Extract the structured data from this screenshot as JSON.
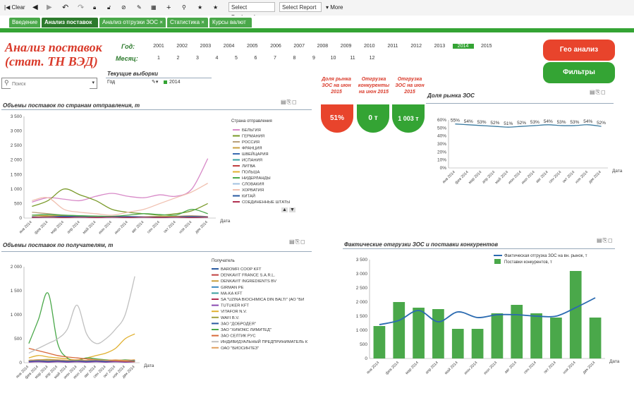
{
  "toolbar": {
    "clear": "Clear",
    "bookmark": "Select Bookmark",
    "report": "Select Report",
    "more": "More"
  },
  "tabs": [
    "Введение",
    "Анализ поставок",
    "Анализ отгрузки ЗОС",
    "Статистика",
    "Курсы валют"
  ],
  "active_tab": 1,
  "header": {
    "title": "Анализ поставок (стат. ТН ВЭД)",
    "year_label": "Год:",
    "month_label": "Месяц:",
    "years": [
      "2001",
      "2002",
      "2003",
      "2004",
      "2005",
      "2006",
      "2007",
      "2008",
      "2009",
      "2010",
      "2011",
      "2012",
      "2013",
      "2014",
      "2015"
    ],
    "selected_year": "2014",
    "months": [
      "1",
      "2",
      "3",
      "4",
      "5",
      "6",
      "7",
      "8",
      "9",
      "10",
      "11",
      "12"
    ]
  },
  "buttons": {
    "geo": "Гео анализ",
    "filters": "Фильтры",
    "colors": {
      "geo": "#e8442c",
      "filters": "#34a434"
    }
  },
  "search": {
    "placeholder": "Поиск"
  },
  "current_selections": {
    "title": "Текущие выборки",
    "field": "Год",
    "value": "2014"
  },
  "kpi": {
    "labels": [
      "Доля рынка ЗОС на июн 2015",
      "Отгрузка конкуренты на июн 2015",
      "Отгрузка ЗОС на июн 2015"
    ],
    "values": [
      "51%",
      "0 т",
      "1 003 т"
    ],
    "colors": [
      "#e8442c",
      "#34a434",
      "#34a434"
    ]
  },
  "chart_country": {
    "title": "Объемы поставок по странам отправления, т",
    "legend_title": "Страна отправления",
    "xlabel": "Дата",
    "yticks": [
      "3 500",
      "3 000",
      "2 500",
      "2 000",
      "1 500",
      "1 000",
      "500",
      "0"
    ],
    "xticks": [
      "янв 2014",
      "фев 2014",
      "мар 2014",
      "апр 2014",
      "май 2014",
      "июн 2014",
      "июл 2014",
      "авг 2014",
      "сен 2014",
      "окт 2014",
      "ноя 2014",
      "дек 2014"
    ]
  },
  "chart_recipient": {
    "title": "Объемы поставок по получателям, т",
    "legend_title": "Получатель",
    "xlabel": "Дата",
    "yticks": [
      "2 000",
      "1 500",
      "1 000",
      "500",
      "0"
    ],
    "xticks": [
      "янв 2014",
      "фев 2014",
      "мар 2014",
      "апр 2014",
      "май 2014",
      "июн 2014",
      "июл 2014",
      "авг 2014",
      "сен 2014",
      "окт 2014",
      "ноя 2014",
      "дек 2014"
    ]
  },
  "chart_share": {
    "title": "Доля рынка ЗОС",
    "xlabel": "Дата",
    "yticks": [
      "60%",
      "50%",
      "40%",
      "30%",
      "20%",
      "10%",
      "0%"
    ],
    "xticks": [
      "янв 2014",
      "фев 2014",
      "мар 2014",
      "апр 2014",
      "май 2014",
      "июн 2014",
      "июл 2014",
      "авг 2014",
      "сен 2014",
      "окт 2014",
      "ноя 2014",
      "дек 2014"
    ]
  },
  "chart_actual": {
    "title": "Фактические отгрузки ЗОС и поставки конкурентов",
    "xlabel": "Дата",
    "yticks": [
      "3 500",
      "3 000",
      "2 500",
      "2 000",
      "1 500",
      "1 000",
      "500",
      "0"
    ],
    "xticks": [
      "янв 2014",
      "фев 2014",
      "мар 2014",
      "апр 2014",
      "май 2014",
      "июн 2014",
      "июл 2014",
      "авг 2014",
      "сен 2014",
      "окт 2014",
      "ноя 2014",
      "дек 2014"
    ]
  },
  "chart_data": [
    {
      "type": "line",
      "title": "Объемы поставок по странам отправления, т",
      "xlabel": "Дата",
      "ylabel": "",
      "ylim": [
        0,
        3500
      ],
      "legend": "right",
      "categories": [
        "янв 2014",
        "фев 2014",
        "мар 2014",
        "апр 2014",
        "май 2014",
        "июн 2014",
        "июл 2014",
        "авг 2014",
        "сен 2014",
        "окт 2014",
        "ноя 2014",
        "дек 2014"
      ],
      "series": [
        {
          "name": "БЕЛЬГИЯ",
          "color": "#d88ac8",
          "values": [
            550,
            700,
            650,
            600,
            750,
            850,
            750,
            700,
            800,
            750,
            1000,
            2050
          ]
        },
        {
          "name": "ГЕРМАНИЯ",
          "color": "#7a9a2a",
          "values": [
            400,
            600,
            1000,
            800,
            600,
            300,
            200,
            150,
            100,
            150,
            250,
            500
          ]
        },
        {
          "name": "РОССИЯ",
          "color": "#b8a07a",
          "values": [
            200,
            150,
            100,
            80,
            60,
            50,
            40,
            30,
            40,
            60,
            80,
            50
          ]
        },
        {
          "name": "ФРАНЦИЯ",
          "color": "#c8a040",
          "values": [
            100,
            80,
            90,
            70,
            60,
            50,
            50,
            40,
            60,
            50,
            40,
            30
          ]
        },
        {
          "name": "ШВЕЙЦАРИЯ",
          "color": "#3a6ab0",
          "values": [
            50,
            40,
            60,
            50,
            40,
            30,
            40,
            30,
            20,
            30,
            40,
            30
          ]
        },
        {
          "name": "ИСПАНИЯ",
          "color": "#3aa0a0",
          "values": [
            30,
            40,
            30,
            50,
            40,
            30,
            20,
            30,
            40,
            30,
            20,
            30
          ]
        },
        {
          "name": "ЛИТВА",
          "color": "#c04040",
          "values": [
            20,
            30,
            20,
            30,
            20,
            30,
            20,
            30,
            20,
            30,
            20,
            30
          ]
        },
        {
          "name": "ПОЛЬША",
          "color": "#e0b030",
          "values": [
            40,
            50,
            40,
            30,
            40,
            50,
            40,
            30,
            40,
            50,
            40,
            30
          ]
        },
        {
          "name": "НИДЕРЛАНДЫ",
          "color": "#4aa84a",
          "values": [
            100,
            120,
            100,
            80,
            70,
            60,
            100,
            150,
            120,
            100,
            300,
            150
          ]
        },
        {
          "name": "СЛОВАКИЯ",
          "color": "#a0c0e0",
          "values": [
            20,
            20,
            30,
            20,
            30,
            20,
            30,
            20,
            30,
            20,
            30,
            20
          ]
        },
        {
          "name": "ХОРВАТИЯ",
          "color": "#f0c0b0",
          "values": [
            600,
            700,
            300,
            200,
            150,
            100,
            200,
            300,
            500,
            700,
            900,
            1200
          ]
        },
        {
          "name": "КИТАЙ",
          "color": "#2a5aa0",
          "values": [
            30,
            40,
            50,
            40,
            30,
            40,
            50,
            40,
            30,
            40,
            50,
            40
          ]
        },
        {
          "name": "СОЕДИНЕННЫЕ ШТАТЫ",
          "color": "#b03050",
          "values": [
            20,
            30,
            20,
            30,
            20,
            30,
            20,
            30,
            20,
            30,
            20,
            30
          ]
        }
      ]
    },
    {
      "type": "line",
      "title": "Объемы поставок по получателям, т",
      "xlabel": "Дата",
      "ylabel": "",
      "ylim": [
        0,
        2000
      ],
      "legend": "right",
      "categories": [
        "янв 2014",
        "фев 2014",
        "мар 2014",
        "апр 2014",
        "май 2014",
        "июн 2014",
        "июл 2014",
        "авг 2014",
        "сен 2014",
        "окт 2014",
        "ноя 2014",
        "дек 2014"
      ],
      "series": [
        {
          "name": "BAROMFI COOP KFT",
          "color": "#2a5aa0",
          "values": [
            50,
            60,
            50,
            40,
            50,
            40,
            30,
            40,
            30,
            40,
            50,
            40
          ]
        },
        {
          "name": "DENKAVIT FRANCE S.A.R.L.",
          "color": "#c04040",
          "values": [
            30,
            40,
            30,
            40,
            30,
            20,
            30,
            40,
            30,
            20,
            30,
            40
          ]
        },
        {
          "name": "DENKAVIT INGREDIENTS BV",
          "color": "#c8a040",
          "values": [
            20,
            30,
            20,
            30,
            20,
            30,
            20,
            30,
            20,
            30,
            20,
            30
          ]
        },
        {
          "name": "GIRMAN PE",
          "color": "#3a8ac0",
          "values": [
            40,
            50,
            40,
            30,
            40,
            50,
            40,
            30,
            40,
            50,
            40,
            30
          ]
        },
        {
          "name": "MA-KA KFT",
          "color": "#3aa0a0",
          "values": [
            30,
            20,
            30,
            20,
            30,
            20,
            30,
            20,
            30,
            20,
            30,
            20
          ]
        },
        {
          "name": "SA \"UZINA BIOCHIMICA DIN BALTI\" (АО \"БИ",
          "color": "#b03050",
          "values": [
            20,
            30,
            20,
            30,
            20,
            30,
            20,
            30,
            20,
            30,
            20,
            30
          ]
        },
        {
          "name": "TUTUKER KFT",
          "color": "#8a4ab0",
          "values": [
            10,
            20,
            10,
            20,
            10,
            20,
            10,
            20,
            10,
            20,
            10,
            20
          ]
        },
        {
          "name": "VITAFOR N.V.",
          "color": "#e0b030",
          "values": [
            100,
            150,
            120,
            100,
            80,
            60,
            100,
            150,
            200,
            300,
            500,
            600
          ]
        },
        {
          "name": "WAFI B.V.",
          "color": "#a0a040",
          "values": [
            50,
            60,
            70,
            60,
            50,
            40,
            50,
            60,
            50,
            40,
            50,
            60
          ]
        },
        {
          "name": "ЗАО \"ДОБРОДЕЯ\"",
          "color": "#2a5aa0",
          "values": [
            30,
            40,
            30,
            40,
            30,
            40,
            30,
            40,
            30,
            40,
            30,
            40
          ]
        },
        {
          "name": "ЗАО \"ХИМЭКС ЛИМИТЕД\"",
          "color": "#4aa84a",
          "values": [
            400,
            900,
            1450,
            400,
            100,
            50,
            100,
            80,
            60,
            50,
            60,
            50
          ]
        },
        {
          "name": "ЗАО СЕЛТИК РУС",
          "color": "#d86a3a",
          "values": [
            300,
            250,
            200,
            150,
            120,
            100,
            80,
            60,
            50,
            40,
            30,
            20
          ]
        },
        {
          "name": "ИНДИВИДУАЛЬНЫЙ ПРЕДПРИНИМАТЕЛЬ К",
          "color": "#c0c0c0",
          "values": [
            200,
            300,
            400,
            500,
            700,
            1200,
            600,
            400,
            500,
            700,
            1000,
            1800
          ]
        },
        {
          "name": "ОАО \"БИОСИНТЕЗ\"",
          "color": "#e0a060",
          "values": [
            50,
            60,
            50,
            60,
            50,
            60,
            50,
            60,
            50,
            60,
            50,
            60
          ]
        }
      ]
    },
    {
      "type": "line",
      "title": "Доля рынка ЗОС",
      "xlabel": "Дата",
      "ylabel": "",
      "ylim": [
        0,
        0.6
      ],
      "legend": "none",
      "categories": [
        "янв 2014",
        "фев 2014",
        "мар 2014",
        "апр 2014",
        "май 2014",
        "июн 2014",
        "июл 2014",
        "авг 2014",
        "сен 2014",
        "окт 2014",
        "ноя 2014",
        "дек 2014"
      ],
      "series": [
        {
          "name": "",
          "color": "#3a7aa0",
          "values": [
            0.55,
            0.54,
            0.53,
            0.52,
            0.51,
            0.52,
            0.53,
            0.54,
            0.53,
            0.53,
            0.54,
            0.52
          ]
        }
      ],
      "data_labels": [
        "55%",
        "54%",
        "53%",
        "52%",
        "51%",
        "52%",
        "53%",
        "54%",
        "53%",
        "53%",
        "54%",
        "52%"
      ]
    },
    {
      "type": "bar",
      "title": "Фактические отгрузки ЗОС и поставки конкурентов",
      "xlabel": "Дата",
      "ylabel": "",
      "ylim": [
        0,
        3500
      ],
      "legend": "top-right",
      "categories": [
        "янв 2014",
        "фев 2014",
        "мар 2014",
        "апр 2014",
        "май 2014",
        "июн 2014",
        "июл 2014",
        "авг 2014",
        "сен 2014",
        "окт 2014",
        "ноя 2014",
        "дек 2014"
      ],
      "series": [
        {
          "name": "Фактическая отгрузка ЗОС на вн. рынок, т",
          "type": "line",
          "color": "#2a6ab0",
          "values": [
            1200,
            1350,
            1700,
            1300,
            1650,
            1450,
            1550,
            1550,
            1500,
            1500,
            1800,
            2150
          ]
        },
        {
          "name": "Поставки конкурентов, т",
          "type": "bar",
          "color": "#4aa84a",
          "values": [
            1150,
            2000,
            1800,
            1750,
            1050,
            1050,
            1600,
            1900,
            1600,
            1450,
            3100,
            1450
          ]
        }
      ]
    }
  ]
}
